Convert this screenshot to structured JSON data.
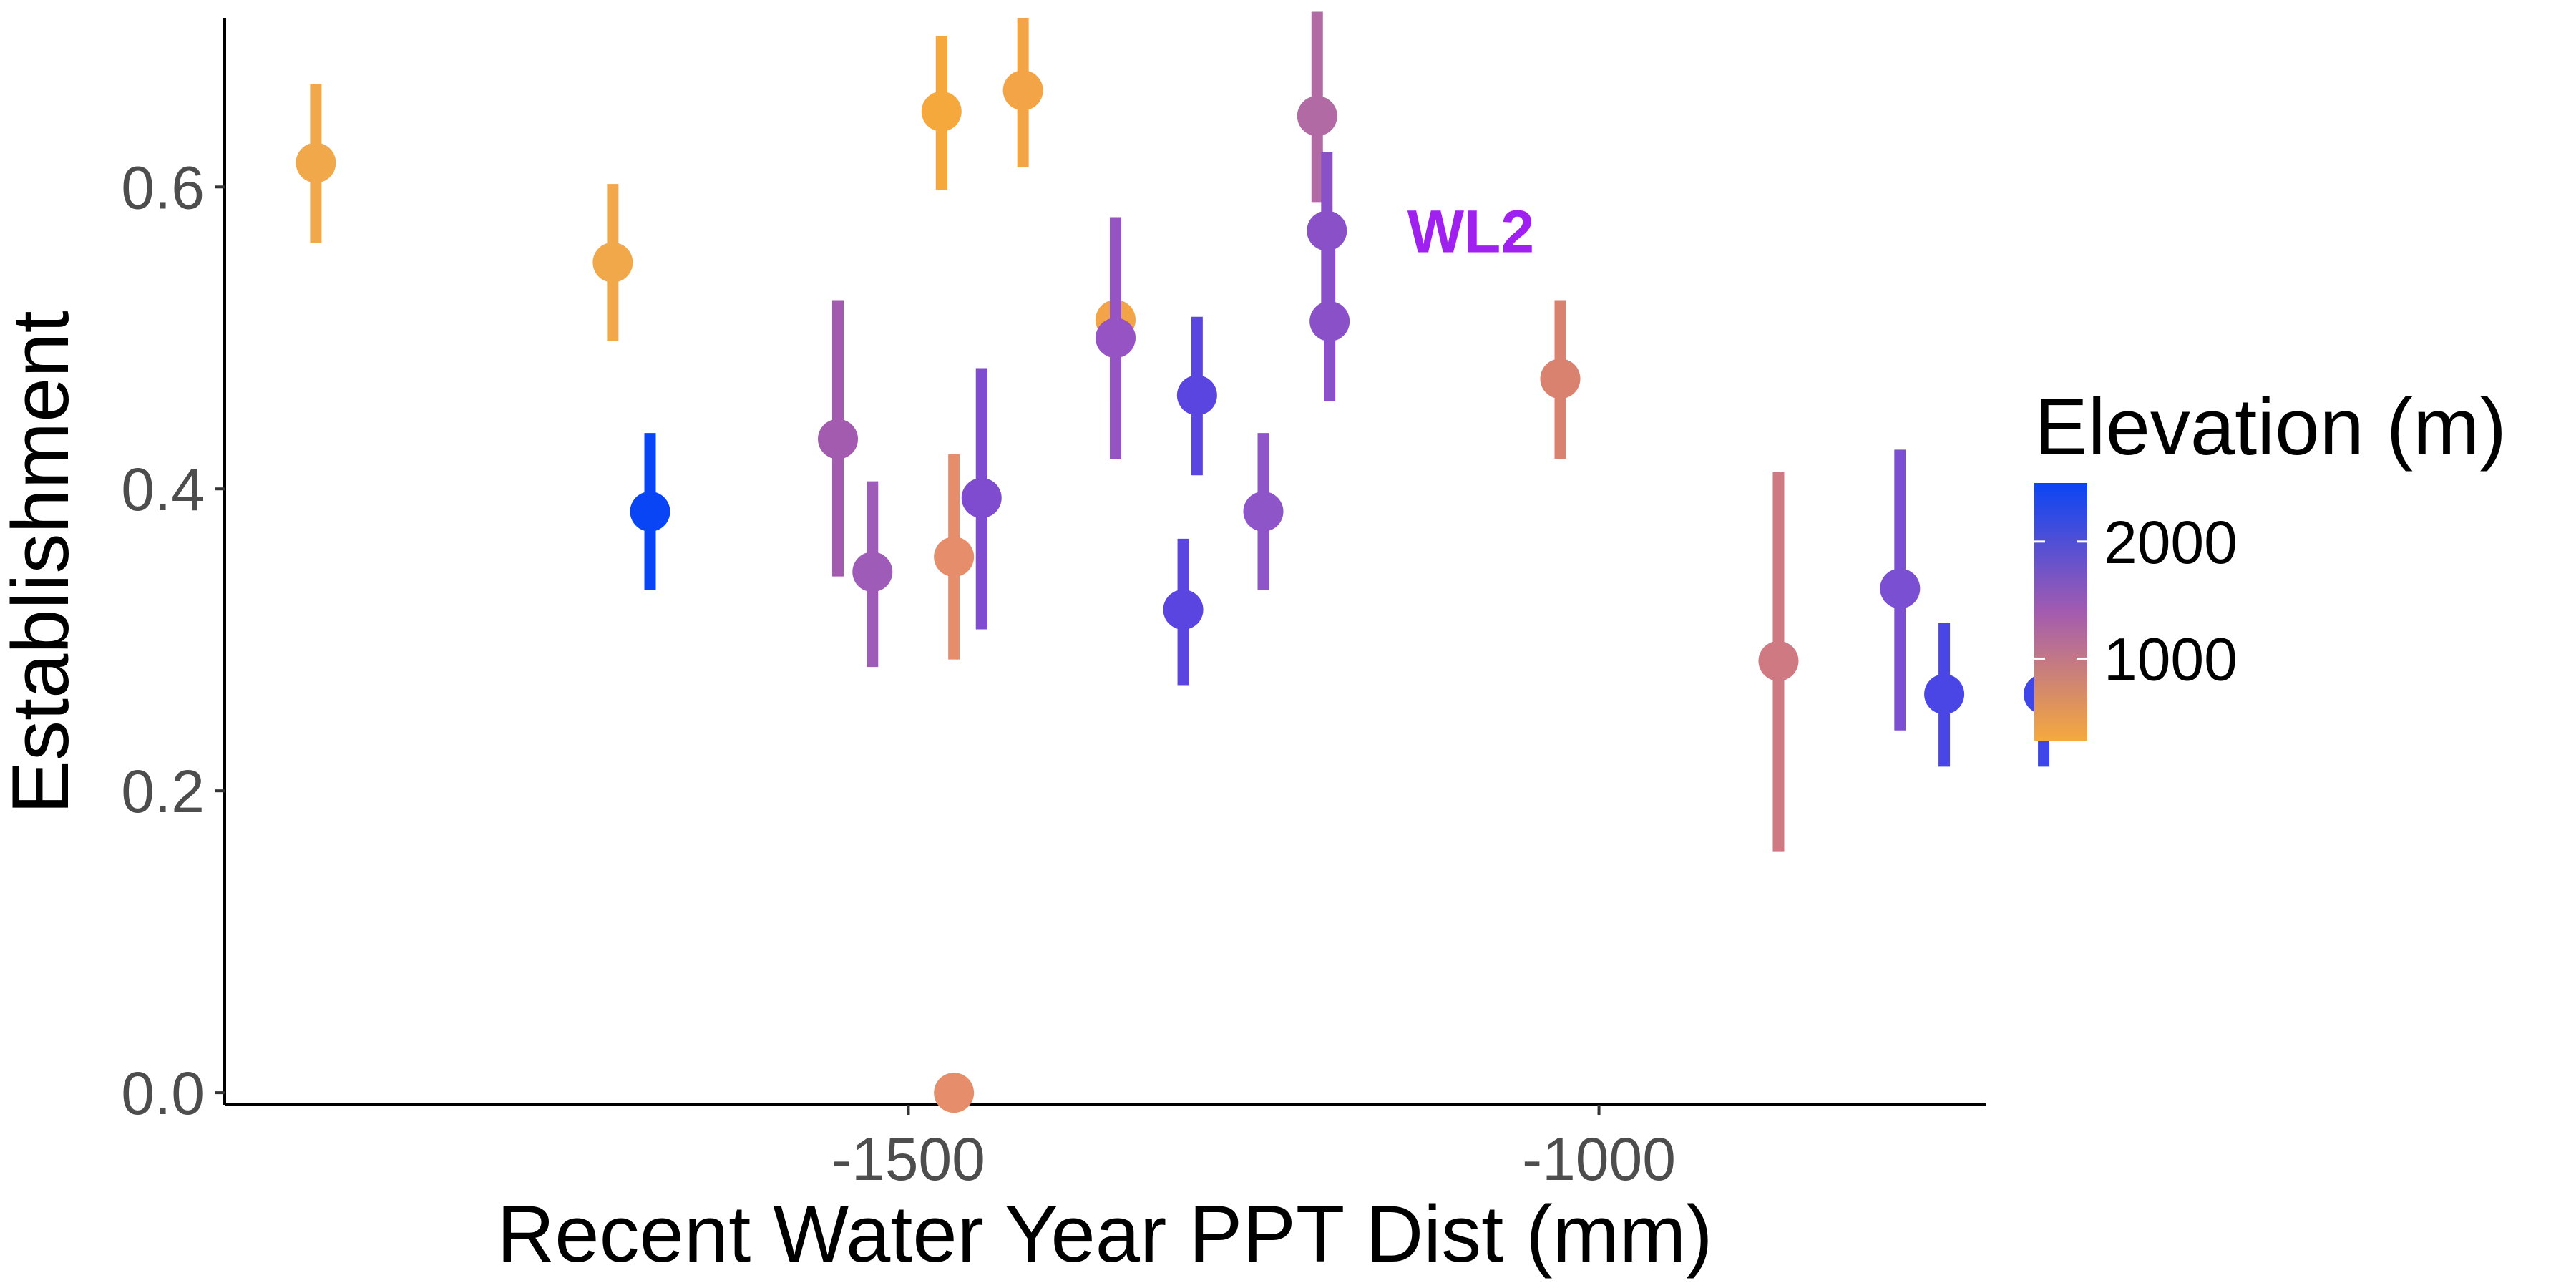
{
  "chart_data": {
    "type": "scatter",
    "xlabel": "Recent Water Year PPT Dist (mm)",
    "ylabel": "Establishment",
    "xlim": [
      -1995,
      -720
    ],
    "ylim": [
      -0.008,
      0.712
    ],
    "x_ticks": [
      -1500,
      -1000
    ],
    "x_tick_labels": [
      "-1500",
      "-1000"
    ],
    "y_ticks": [
      0.0,
      0.2,
      0.4,
      0.6
    ],
    "y_tick_labels": [
      "0.0",
      "0.2",
      "0.4",
      "0.6"
    ],
    "grid": false,
    "legend": {
      "title": "Elevation (m)",
      "placement": "right",
      "type": "colorbar",
      "range": [
        300,
        2500
      ],
      "ticks": [
        2000,
        1000
      ],
      "tick_labels": [
        "2000",
        "1000"
      ],
      "colors": {
        "low": "#f5a93d",
        "mid": "#a35bb0",
        "high": "#0a45f5"
      }
    },
    "annotations": [
      {
        "text": "WL2",
        "x": -1175,
        "y": 0.571,
        "color": "#a020f0"
      }
    ],
    "points": [
      {
        "x": -1929,
        "y": 0.616,
        "ymin": 0.563,
        "ymax": 0.668,
        "elevation": 400,
        "color": "#f0a84b"
      },
      {
        "x": -1714,
        "y": 0.55,
        "ymin": 0.498,
        "ymax": 0.602,
        "elevation": 420,
        "color": "#f0a84b"
      },
      {
        "x": -1687,
        "y": 0.385,
        "ymin": 0.333,
        "ymax": 0.437,
        "elevation": 2470,
        "color": "#0a45f5"
      },
      {
        "x": -1551,
        "y": 0.433,
        "ymin": 0.342,
        "ymax": 0.525,
        "elevation": 1720,
        "color": "#a35bb0"
      },
      {
        "x": -1526,
        "y": 0.345,
        "ymin": 0.282,
        "ymax": 0.405,
        "elevation": 1760,
        "color": "#9e5cb8"
      },
      {
        "x": -1476,
        "y": 0.65,
        "ymin": 0.598,
        "ymax": 0.7,
        "elevation": 320,
        "color": "#f5a93d"
      },
      {
        "x": -1467,
        "y": 0.355,
        "ymin": 0.287,
        "ymax": 0.423,
        "elevation": 800,
        "color": "#e68e6b"
      },
      {
        "x": -1467,
        "y": 0.0,
        "ymin": 0.0,
        "ymax": 0.0,
        "elevation": 800,
        "color": "#e68e6b"
      },
      {
        "x": -1447,
        "y": 0.394,
        "ymin": 0.307,
        "ymax": 0.48,
        "elevation": 2050,
        "color": "#7f4ccf"
      },
      {
        "x": -1417,
        "y": 0.664,
        "ymin": 0.613,
        "ymax": 0.712,
        "elevation": 380,
        "color": "#f2a446"
      },
      {
        "x": -1350,
        "y": 0.512,
        "ymin": 0.458,
        "ymax": 0.565,
        "elevation": 340,
        "color": "#f2a446"
      },
      {
        "x": -1350,
        "y": 0.5,
        "ymin": 0.42,
        "ymax": 0.58,
        "elevation": 1900,
        "color": "#9553c3"
      },
      {
        "x": -1301,
        "y": 0.32,
        "ymin": 0.27,
        "ymax": 0.367,
        "elevation": 2350,
        "color": "#5a45e0"
      },
      {
        "x": -1291,
        "y": 0.462,
        "ymin": 0.409,
        "ymax": 0.514,
        "elevation": 2300,
        "color": "#5a45e0"
      },
      {
        "x": -1243,
        "y": 0.385,
        "ymin": 0.333,
        "ymax": 0.437,
        "elevation": 2000,
        "color": "#8e55c8"
      },
      {
        "x": -1204,
        "y": 0.647,
        "ymin": 0.59,
        "ymax": 0.716,
        "elevation": 1500,
        "color": "#b26aa4"
      },
      {
        "x": -1197,
        "y": 0.571,
        "ymin": 0.518,
        "ymax": 0.623,
        "elevation": 2020,
        "color": "#8a50c8"
      },
      {
        "x": -1195,
        "y": 0.511,
        "ymin": 0.458,
        "ymax": 0.563,
        "elevation": 2050,
        "color": "#8a50c8"
      },
      {
        "x": -1028,
        "y": 0.473,
        "ymin": 0.42,
        "ymax": 0.525,
        "elevation": 900,
        "color": "#d9826f"
      },
      {
        "x": -870,
        "y": 0.286,
        "ymin": 0.16,
        "ymax": 0.411,
        "elevation": 1100,
        "color": "#cf7a83"
      },
      {
        "x": -782,
        "y": 0.334,
        "ymin": 0.24,
        "ymax": 0.426,
        "elevation": 2150,
        "color": "#7a4fd2"
      },
      {
        "x": -750,
        "y": 0.264,
        "ymin": 0.216,
        "ymax": 0.311,
        "elevation": 2400,
        "color": "#4a45e5"
      },
      {
        "x": -678,
        "y": 0.264,
        "ymin": 0.216,
        "ymax": 0.311,
        "elevation": 2450,
        "color": "#3f46e8"
      }
    ]
  }
}
